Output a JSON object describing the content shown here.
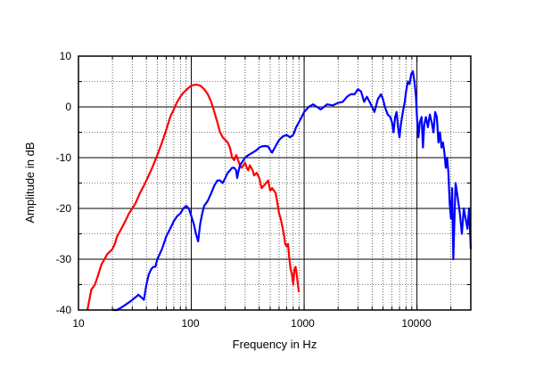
{
  "chart_data": {
    "type": "line",
    "xscale": "log",
    "xlabel": "Frequency in Hz",
    "ylabel": "Amplitude in dB",
    "xlim": [
      10,
      30000
    ],
    "ylim": [
      -40,
      10
    ],
    "grid": true,
    "x_tick_labels": [
      "10",
      "100",
      "1000",
      "10000"
    ],
    "y_tick_labels": [
      "10",
      "0",
      "-10",
      "-20",
      "-30",
      "-40"
    ],
    "series": [
      {
        "color": "#ff0000",
        "points": [
          [
            12,
            -40
          ],
          [
            13,
            -36
          ],
          [
            14,
            -35
          ],
          [
            15,
            -33
          ],
          [
            16,
            -31
          ],
          [
            17,
            -30
          ],
          [
            18,
            -29
          ],
          [
            19,
            -28.5
          ],
          [
            20,
            -28
          ],
          [
            21,
            -27
          ],
          [
            22,
            -25.5
          ],
          [
            24,
            -24
          ],
          [
            26,
            -22.5
          ],
          [
            28,
            -21
          ],
          [
            30,
            -20
          ],
          [
            32,
            -19
          ],
          [
            35,
            -17
          ],
          [
            38,
            -15.5
          ],
          [
            40,
            -14.5
          ],
          [
            45,
            -12
          ],
          [
            50,
            -9.5
          ],
          [
            55,
            -7
          ],
          [
            60,
            -4.5
          ],
          [
            65,
            -2
          ],
          [
            70,
            -0.5
          ],
          [
            75,
            1
          ],
          [
            80,
            2
          ],
          [
            85,
            2.8
          ],
          [
            90,
            3.3
          ],
          [
            95,
            3.8
          ],
          [
            100,
            4.2
          ],
          [
            110,
            4.4
          ],
          [
            120,
            4.2
          ],
          [
            130,
            3.5
          ],
          [
            140,
            2.5
          ],
          [
            150,
            1
          ],
          [
            160,
            -1
          ],
          [
            170,
            -3
          ],
          [
            180,
            -5
          ],
          [
            190,
            -6
          ],
          [
            200,
            -6.5
          ],
          [
            210,
            -7
          ],
          [
            220,
            -8
          ],
          [
            230,
            -10
          ],
          [
            240,
            -10.5
          ],
          [
            250,
            -9.5
          ],
          [
            260,
            -10.5
          ],
          [
            270,
            -11.5
          ],
          [
            280,
            -12
          ],
          [
            290,
            -11.5
          ],
          [
            300,
            -11
          ],
          [
            310,
            -12
          ],
          [
            320,
            -12.5
          ],
          [
            330,
            -11.5
          ],
          [
            340,
            -12
          ],
          [
            350,
            -12.5
          ],
          [
            360,
            -13.5
          ],
          [
            380,
            -13
          ],
          [
            400,
            -14
          ],
          [
            420,
            -16
          ],
          [
            440,
            -15.5
          ],
          [
            460,
            -15
          ],
          [
            480,
            -14.5
          ],
          [
            500,
            -16.5
          ],
          [
            520,
            -16
          ],
          [
            540,
            -16.5
          ],
          [
            560,
            -17
          ],
          [
            580,
            -19
          ],
          [
            600,
            -21
          ],
          [
            620,
            -22
          ],
          [
            640,
            -23.5
          ],
          [
            660,
            -25
          ],
          [
            680,
            -27
          ],
          [
            700,
            -27.5
          ],
          [
            720,
            -27
          ],
          [
            740,
            -30
          ],
          [
            760,
            -32
          ],
          [
            780,
            -33
          ],
          [
            800,
            -35
          ],
          [
            820,
            -32
          ],
          [
            840,
            -31.5
          ],
          [
            860,
            -33
          ],
          [
            880,
            -35
          ],
          [
            900,
            -36.5
          ]
        ]
      },
      {
        "color": "#0000ff",
        "points": [
          [
            20,
            -40
          ],
          [
            22,
            -40
          ],
          [
            24,
            -39.5
          ],
          [
            26,
            -39
          ],
          [
            28,
            -38.5
          ],
          [
            30,
            -38
          ],
          [
            32,
            -37.5
          ],
          [
            34,
            -37
          ],
          [
            36,
            -37.5
          ],
          [
            38,
            -38
          ],
          [
            40,
            -35
          ],
          [
            42,
            -33
          ],
          [
            44,
            -32
          ],
          [
            46,
            -31.5
          ],
          [
            48,
            -31.5
          ],
          [
            50,
            -30
          ],
          [
            55,
            -28
          ],
          [
            60,
            -25.5
          ],
          [
            65,
            -24
          ],
          [
            70,
            -22.5
          ],
          [
            75,
            -21.5
          ],
          [
            80,
            -21
          ],
          [
            85,
            -20
          ],
          [
            90,
            -19.5
          ],
          [
            95,
            -20
          ],
          [
            100,
            -21.5
          ],
          [
            105,
            -23
          ],
          [
            110,
            -25
          ],
          [
            115,
            -26.5
          ],
          [
            120,
            -23
          ],
          [
            125,
            -21
          ],
          [
            130,
            -19.5
          ],
          [
            140,
            -18.5
          ],
          [
            150,
            -17
          ],
          [
            160,
            -15.5
          ],
          [
            170,
            -14.5
          ],
          [
            180,
            -14.5
          ],
          [
            190,
            -15
          ],
          [
            200,
            -14
          ],
          [
            210,
            -13
          ],
          [
            220,
            -12.5
          ],
          [
            230,
            -12
          ],
          [
            240,
            -12
          ],
          [
            250,
            -12.5
          ],
          [
            255,
            -14
          ],
          [
            260,
            -13
          ],
          [
            270,
            -11.5
          ],
          [
            280,
            -11
          ],
          [
            300,
            -10
          ],
          [
            320,
            -9.5
          ],
          [
            350,
            -9
          ],
          [
            380,
            -8.5
          ],
          [
            400,
            -8
          ],
          [
            420,
            -7.8
          ],
          [
            450,
            -7.7
          ],
          [
            480,
            -7.8
          ],
          [
            500,
            -8.5
          ],
          [
            520,
            -9
          ],
          [
            550,
            -8
          ],
          [
            600,
            -6.5
          ],
          [
            650,
            -5.8
          ],
          [
            700,
            -5.5
          ],
          [
            750,
            -6
          ],
          [
            800,
            -5.5
          ],
          [
            850,
            -4
          ],
          [
            900,
            -3
          ],
          [
            950,
            -2
          ],
          [
            1000,
            -1
          ],
          [
            1100,
            0
          ],
          [
            1200,
            0.5
          ],
          [
            1300,
            0
          ],
          [
            1400,
            -0.5
          ],
          [
            1500,
            0
          ],
          [
            1600,
            0.5
          ],
          [
            1800,
            0.3
          ],
          [
            2000,
            0.8
          ],
          [
            2200,
            1
          ],
          [
            2400,
            2
          ],
          [
            2600,
            2.5
          ],
          [
            2800,
            2.5
          ],
          [
            3000,
            3.5
          ],
          [
            3200,
            3
          ],
          [
            3400,
            1
          ],
          [
            3600,
            2
          ],
          [
            3800,
            1
          ],
          [
            4000,
            0
          ],
          [
            4200,
            -1
          ],
          [
            4500,
            1.5
          ],
          [
            4800,
            2.5
          ],
          [
            5000,
            1.5
          ],
          [
            5200,
            0
          ],
          [
            5500,
            -1.5
          ],
          [
            5800,
            -2
          ],
          [
            6000,
            -3
          ],
          [
            6200,
            -5
          ],
          [
            6400,
            -2
          ],
          [
            6600,
            -1
          ],
          [
            6800,
            -4
          ],
          [
            7000,
            -6
          ],
          [
            7200,
            -3.5
          ],
          [
            7500,
            -1
          ],
          [
            7800,
            1
          ],
          [
            8000,
            3
          ],
          [
            8300,
            5
          ],
          [
            8600,
            4.5
          ],
          [
            8900,
            6.5
          ],
          [
            9200,
            7
          ],
          [
            9500,
            5
          ],
          [
            9800,
            2
          ],
          [
            10000,
            -2
          ],
          [
            10300,
            -6
          ],
          [
            10600,
            -3
          ],
          [
            11000,
            -2
          ],
          [
            11300,
            -8
          ],
          [
            11600,
            -3.5
          ],
          [
            12000,
            -2
          ],
          [
            12500,
            -4
          ],
          [
            13000,
            -1.5
          ],
          [
            13500,
            -3
          ],
          [
            14000,
            -5
          ],
          [
            14500,
            -1
          ],
          [
            15000,
            -2
          ],
          [
            15500,
            -7
          ],
          [
            16000,
            -5
          ],
          [
            16500,
            -8
          ],
          [
            17000,
            -7
          ],
          [
            17500,
            -9
          ],
          [
            18000,
            -12
          ],
          [
            18500,
            -10
          ],
          [
            19000,
            -13
          ],
          [
            19500,
            -19
          ],
          [
            20000,
            -22
          ],
          [
            20500,
            -16
          ],
          [
            21000,
            -30
          ],
          [
            21500,
            -22
          ],
          [
            22000,
            -15
          ],
          [
            23000,
            -18
          ],
          [
            24000,
            -21
          ],
          [
            25000,
            -25
          ],
          [
            26000,
            -20
          ],
          [
            27000,
            -22
          ],
          [
            28000,
            -24
          ],
          [
            29000,
            -20
          ],
          [
            30000,
            -28
          ]
        ]
      }
    ]
  }
}
